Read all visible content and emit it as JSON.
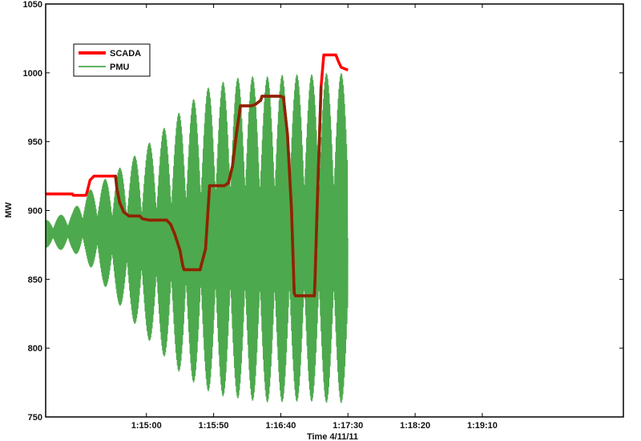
{
  "chart_data": {
    "type": "line",
    "title": "",
    "xlabel": "Time 4/11/11",
    "ylabel": "MW",
    "ylim": [
      750,
      1050
    ],
    "yticks": [
      750,
      800,
      850,
      900,
      950,
      1000,
      1050
    ],
    "xlim_seconds": [
      0,
      430
    ],
    "xticks": [
      {
        "t": 75,
        "label": "1:15:00"
      },
      {
        "t": 125,
        "label": "1:15:50"
      },
      {
        "t": 175,
        "label": "1:16:40"
      },
      {
        "t": 225,
        "label": "1:17:30"
      },
      {
        "t": 275,
        "label": "1:18:20"
      },
      {
        "t": 325,
        "label": "1:19:10"
      }
    ],
    "legend": {
      "placement": "top-left"
    },
    "series": [
      {
        "name": "SCADA",
        "color": "#ff0000",
        "overlap_color": "#8b2500",
        "points": [
          [
            0,
            912
          ],
          [
            20,
            912
          ],
          [
            20.5,
            911
          ],
          [
            21,
            911
          ],
          [
            30,
            911
          ],
          [
            31,
            914
          ],
          [
            33,
            922
          ],
          [
            36,
            925
          ],
          [
            42,
            925
          ],
          [
            52,
            925
          ],
          [
            53,
            916
          ],
          [
            55,
            906
          ],
          [
            58,
            899
          ],
          [
            62,
            896
          ],
          [
            70,
            896
          ],
          [
            72,
            894
          ],
          [
            77,
            893
          ],
          [
            90,
            893
          ],
          [
            93,
            890
          ],
          [
            96,
            883
          ],
          [
            100,
            871
          ],
          [
            102,
            860
          ],
          [
            103,
            857
          ],
          [
            115,
            857
          ],
          [
            116,
            861
          ],
          [
            119,
            872
          ],
          [
            122,
            918
          ],
          [
            133,
            918
          ],
          [
            136,
            920
          ],
          [
            139,
            932
          ],
          [
            142,
            956
          ],
          [
            145,
            976
          ],
          [
            153,
            976
          ],
          [
            156,
            977
          ],
          [
            160,
            980
          ],
          [
            161,
            983
          ],
          [
            175,
            983
          ],
          [
            177,
            982
          ],
          [
            180,
            955
          ],
          [
            183,
            900
          ],
          [
            185,
            840
          ],
          [
            186,
            838
          ],
          [
            200,
            838
          ],
          [
            200.5,
            850
          ],
          [
            202,
            900
          ],
          [
            204,
            960
          ],
          [
            205,
            990
          ],
          [
            207,
            1013
          ],
          [
            216,
            1013
          ],
          [
            218,
            1008
          ],
          [
            220,
            1004
          ],
          [
            225,
            1002
          ]
        ]
      },
      {
        "name": "PMU",
        "color": "#2e9a2e",
        "oscillation": {
          "period_s": 0.5,
          "beat_period_s": 11,
          "envelope_points": [
            [
              0,
              883,
              10
            ],
            [
              20,
              885,
              15
            ],
            [
              30,
              888,
              25
            ],
            [
              40,
              885,
              35
            ],
            [
              50,
              882,
              45
            ],
            [
              60,
              880,
              55
            ],
            [
              70,
              878,
              65
            ],
            [
              80,
              877,
              75
            ],
            [
              90,
              877,
              85
            ],
            [
              100,
              877,
              95
            ],
            [
              110,
              878,
              103
            ],
            [
              120,
              879,
              110
            ],
            [
              130,
              879,
              114
            ],
            [
              140,
              880,
              116
            ],
            [
              150,
              880,
              118
            ],
            [
              160,
              879,
              118
            ],
            [
              170,
              879,
              119
            ],
            [
              180,
              880,
              119
            ],
            [
              190,
              880,
              119
            ],
            [
              200,
              880,
              119
            ],
            [
              210,
              880,
              120
            ],
            [
              220,
              880,
              120
            ],
            [
              225,
              880,
              120
            ]
          ]
        }
      }
    ]
  }
}
